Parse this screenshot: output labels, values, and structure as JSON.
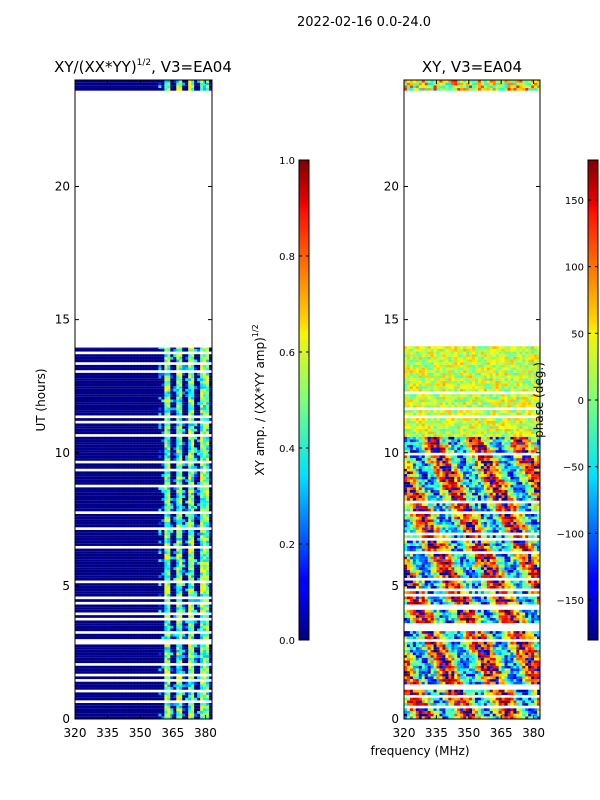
{
  "figure": {
    "suptitle": "2022-02-16 0.0-24.0",
    "shared_xlabel": "frequency (MHz)"
  },
  "chart_data": [
    {
      "type": "heatmap",
      "title": "XY/(XX*YY)",
      "title_sup": "1/2",
      "title_suffix": ", V3=EA04",
      "ylabel": "UT (hours)",
      "xlim": [
        320,
        383
      ],
      "ylim": [
        0,
        24
      ],
      "xticks": [
        320,
        335,
        350,
        365,
        380
      ],
      "yticks": [
        0,
        5,
        10,
        15,
        20
      ],
      "colorbar": {
        "label": "XY amp. / (XX*YY amp)",
        "label_sup": "1/2",
        "range": [
          0.0,
          1.0
        ],
        "ticks": [
          "0.0",
          "0.2",
          "0.4",
          "0.6",
          "0.8",
          "1.0"
        ],
        "tick_values": [
          0.0,
          0.2,
          0.4,
          0.6,
          0.8,
          1.0
        ]
      },
      "data_bands": [
        {
          "t0": 0.0,
          "t1": 13.95
        },
        {
          "t0": 23.6,
          "t1": 24.0
        }
      ],
      "notes": "Mostly low (~0.0-0.05) amplitude; elevated values 0.3-0.7 near 361-381 MHz"
    },
    {
      "type": "heatmap",
      "title": "XY, V3=EA04",
      "xlim": [
        320,
        383
      ],
      "ylim": [
        0,
        24
      ],
      "xticks": [
        320,
        335,
        350,
        365,
        380
      ],
      "yticks": [
        0,
        5,
        10,
        15,
        20
      ],
      "colorbar": {
        "label": "phase (deg.)",
        "range": [
          -180,
          180
        ],
        "ticks": [
          "−150",
          "−100",
          "−50",
          "0",
          "50",
          "100",
          "150"
        ],
        "tick_values": [
          -150,
          -100,
          -50,
          0,
          50,
          100,
          150
        ]
      },
      "data_bands": [
        {
          "t0": 0.0,
          "t1": 14.0
        },
        {
          "t0": 23.6,
          "t1": 24.0
        }
      ],
      "notes": "Phase values spread over full -180 to 180 range"
    }
  ]
}
